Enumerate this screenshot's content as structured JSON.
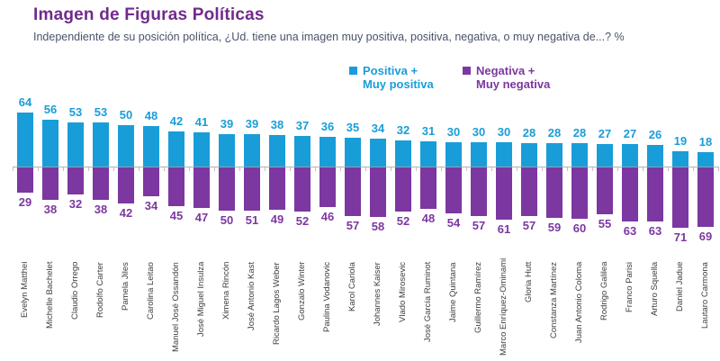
{
  "title": "Imagen de Figuras Políticas",
  "subtitle": "Independiente de su posición política, ¿Ud. tiene una imagen muy positiva, positiva, negativa, o muy negativa de...? %",
  "colors": {
    "positive": "#199DD9",
    "negative": "#7C37A0",
    "title": "#722A8D",
    "subtitle_text": "#49536B",
    "category_text": "#3C3C3C",
    "axis": "#C0C0C0"
  },
  "legend": {
    "positive": {
      "line1": "Positiva +",
      "line2": "Muy positiva"
    },
    "negative": {
      "line1": "Negativa +",
      "line2": "Muy negativa"
    }
  },
  "chart_data": {
    "type": "bar",
    "orientation": "diverging-vertical",
    "title": "Imagen de Figuras Políticas",
    "subtitle": "Independiente de su posición política, ¿Ud. tiene una imagen muy positiva, positiva, negativa, o muy negativa de...? %",
    "value_suffix": "%",
    "baseline": 0,
    "grid": false,
    "legend_position": "top-center",
    "categories": [
      "Evelyn Matthei",
      "Michelle Bachelet",
      "Claudio Orrego",
      "Rodolfo Carter",
      "Pamela Jiles",
      "Carolina Leitao",
      "Manuel José Ossandón",
      "José Miguel Insulza",
      "Ximena Rincón",
      "José Antonio Kast",
      "Ricardo Lagos Weber",
      "Gonzalo Winter",
      "Paulina Vodanovic",
      "Karol Cariola",
      "Johannes Kaiser",
      "Vlado Mirosevic",
      "José García Ruminot",
      "Jaime Quintana",
      "Guillermo Ramírez",
      "Marco Enríquez-Ominami",
      "Gloria Hutt",
      "Constanza Martínez",
      "Juan Antonio Coloma",
      "Rodrigo Galilea",
      "Franco Parisi",
      "Arturo Squella",
      "Daniel Jadue",
      "Lautaro Carmona"
    ],
    "series": [
      {
        "name": "Positiva + Muy positiva",
        "color": "#199DD9",
        "direction": "up",
        "values": [
          64,
          56,
          53,
          53,
          50,
          48,
          42,
          41,
          39,
          39,
          38,
          37,
          36,
          35,
          34,
          32,
          31,
          30,
          30,
          30,
          28,
          28,
          28,
          27,
          27,
          26,
          19,
          18
        ]
      },
      {
        "name": "Negativa + Muy negativa",
        "color": "#7C37A0",
        "direction": "down",
        "values": [
          29,
          38,
          32,
          38,
          42,
          34,
          45,
          47,
          50,
          51,
          49,
          52,
          46,
          57,
          58,
          52,
          48,
          54,
          57,
          61,
          57,
          59,
          60,
          55,
          63,
          63,
          71,
          69
        ]
      }
    ]
  }
}
